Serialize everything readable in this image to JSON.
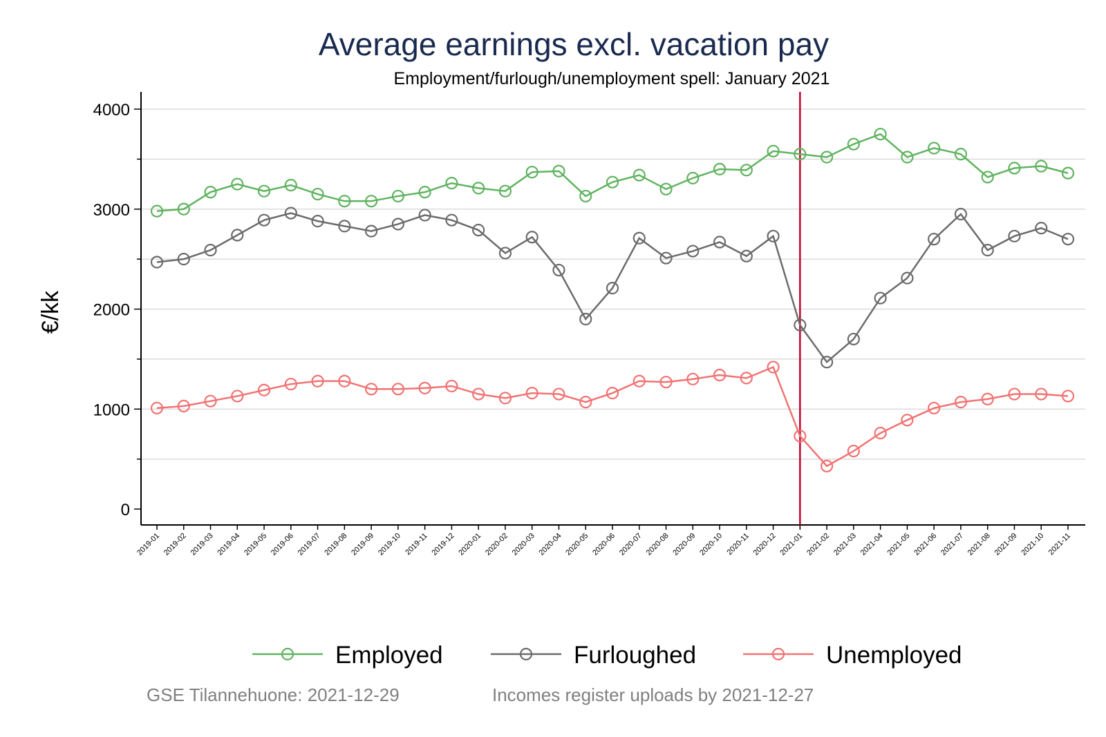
{
  "chart_data": {
    "type": "line",
    "title": "Average earnings excl. vacation pay",
    "subtitle": "Employment/furlough/unemployment spell: January 2021",
    "ylabel": "€/kk",
    "ylim": [
      -150,
      4150
    ],
    "yticks": [
      0,
      1000,
      2000,
      3000,
      4000
    ],
    "grid": true,
    "legend_position": "bottom",
    "vline": {
      "x": "2021-01",
      "color": "#c4002f"
    },
    "categories": [
      "2019-01",
      "2019-02",
      "2019-03",
      "2019-04",
      "2019-05",
      "2019-06",
      "2019-07",
      "2019-08",
      "2019-09",
      "2019-10",
      "2019-11",
      "2019-12",
      "2020-01",
      "2020-02",
      "2020-03",
      "2020-04",
      "2020-05",
      "2020-06",
      "2020-07",
      "2020-08",
      "2020-09",
      "2020-10",
      "2020-11",
      "2020-12",
      "2021-01",
      "2021-02",
      "2021-03",
      "2021-04",
      "2021-05",
      "2021-06",
      "2021-07",
      "2021-08",
      "2021-09",
      "2021-10",
      "2021-11"
    ],
    "series": [
      {
        "name": "Employed",
        "color": "#5fb35f",
        "values": [
          2980,
          3000,
          3170,
          3250,
          3180,
          3240,
          3150,
          3080,
          3080,
          3130,
          3170,
          3260,
          3210,
          3180,
          3370,
          3380,
          3130,
          3270,
          3340,
          3200,
          3310,
          3400,
          3390,
          3580,
          3550,
          3520,
          3650,
          3750,
          3520,
          3610,
          3550,
          3320,
          3410,
          3430,
          3360
        ]
      },
      {
        "name": "Furloughed",
        "color": "#6b6b6b",
        "values": [
          2470,
          2500,
          2590,
          2740,
          2890,
          2960,
          2880,
          2830,
          2780,
          2850,
          2940,
          2890,
          2790,
          2560,
          2720,
          2390,
          1900,
          2210,
          2710,
          2510,
          2580,
          2670,
          2530,
          2730,
          1840,
          1470,
          1700,
          2110,
          2310,
          2700,
          2950,
          2590,
          2730,
          2810,
          2700
        ]
      },
      {
        "name": "Unemployed",
        "color": "#f27272",
        "values": [
          1010,
          1030,
          1080,
          1130,
          1190,
          1250,
          1280,
          1280,
          1200,
          1200,
          1210,
          1230,
          1150,
          1110,
          1160,
          1150,
          1070,
          1160,
          1280,
          1270,
          1300,
          1340,
          1310,
          1420,
          730,
          430,
          580,
          760,
          890,
          1010,
          1070,
          1100,
          1150,
          1150,
          1130
        ]
      }
    ]
  },
  "footer": {
    "source": "GSE Tilannehuone: 2021-12-29",
    "uploads": "Incomes register uploads by 2021-12-27"
  }
}
